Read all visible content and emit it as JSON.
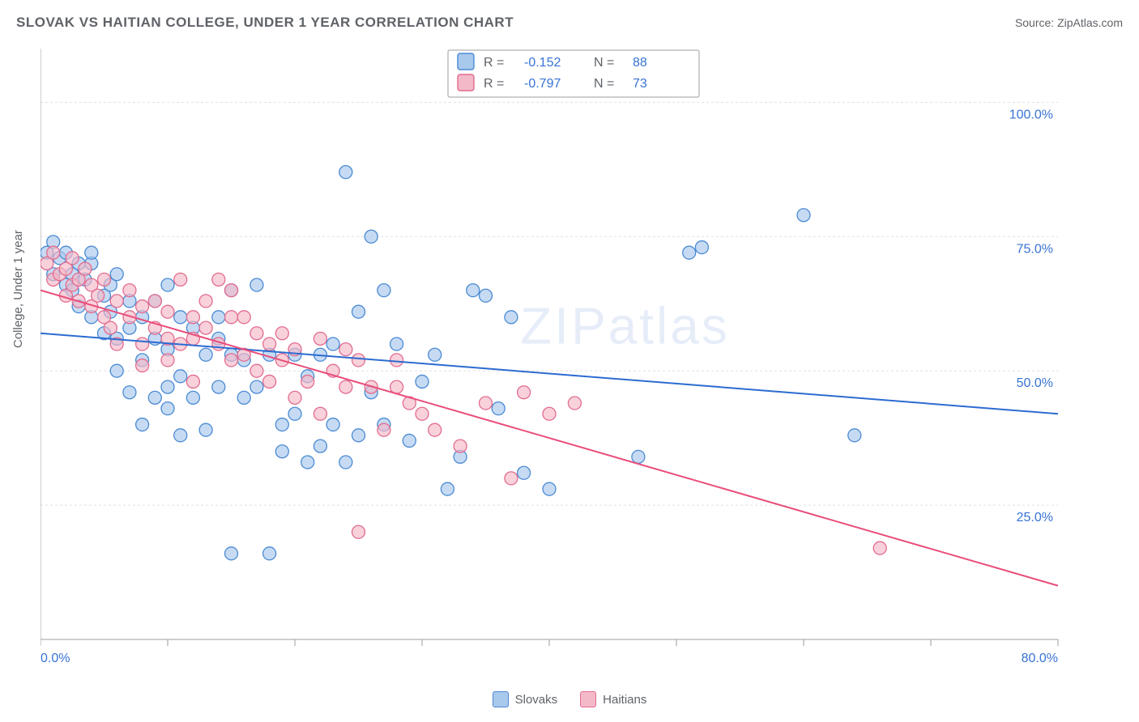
{
  "title": "SLOVAK VS HAITIAN COLLEGE, UNDER 1 YEAR CORRELATION CHART",
  "source": "Source: ZipAtlas.com",
  "ylabel": "College, Under 1 year",
  "watermark": "ZIPatlas",
  "chart": {
    "type": "scatter",
    "background_color": "#ffffff",
    "grid_color": "#e0e0e0",
    "axis_color": "#9e9e9e",
    "tick_color": "#9e9e9e",
    "label_color": "#3873d4",
    "title_fontsize": 17,
    "label_fontsize": 15,
    "tick_fontsize": 16,
    "marker_radius": 8,
    "marker_stroke_width": 1.3,
    "line_width": 2,
    "xlim": [
      0,
      80
    ],
    "ylim": [
      0,
      110
    ],
    "x_ticks_major": [
      0,
      80
    ],
    "x_ticks_minor": [
      10,
      20,
      30,
      40,
      50,
      60,
      70
    ],
    "y_ticks_major": [
      25,
      50,
      75,
      100
    ],
    "y_minor_step": 0,
    "x_tick_labels": {
      "0": "0.0%",
      "80": "80.0%"
    },
    "y_tick_labels": {
      "25": "25.0%",
      "50": "50.0%",
      "75": "75.0%",
      "100": "100.0%"
    }
  },
  "series": [
    {
      "name": "Slovaks",
      "marker_fill": "#a8c8ec",
      "marker_stroke": "#4a8ad4",
      "marker_opacity": 0.65,
      "line_color": "#2c6bd1",
      "trend_start": {
        "x": 0,
        "y": 57
      },
      "trend_end": {
        "x": 80,
        "y": 42
      },
      "R": "-0.152",
      "N": "88",
      "points": [
        [
          0.5,
          72
        ],
        [
          1,
          68
        ],
        [
          1,
          74
        ],
        [
          1.5,
          71
        ],
        [
          2,
          66
        ],
        [
          2,
          72
        ],
        [
          2.5,
          65
        ],
        [
          2.5,
          68
        ],
        [
          3,
          62
        ],
        [
          3,
          70
        ],
        [
          3.5,
          67
        ],
        [
          4,
          70
        ],
        [
          4,
          60
        ],
        [
          4,
          72
        ],
        [
          5,
          64
        ],
        [
          5,
          57
        ],
        [
          5.5,
          66
        ],
        [
          5.5,
          61
        ],
        [
          6,
          56
        ],
        [
          6,
          68
        ],
        [
          6,
          50
        ],
        [
          7,
          58
        ],
        [
          7,
          63
        ],
        [
          7,
          46
        ],
        [
          8,
          60
        ],
        [
          8,
          52
        ],
        [
          8,
          40
        ],
        [
          9,
          63
        ],
        [
          9,
          45
        ],
        [
          9,
          56
        ],
        [
          10,
          66
        ],
        [
          10,
          54
        ],
        [
          10,
          43
        ],
        [
          10,
          47
        ],
        [
          11,
          38
        ],
        [
          11,
          60
        ],
        [
          11,
          49
        ],
        [
          12,
          45
        ],
        [
          12,
          58
        ],
        [
          13,
          53
        ],
        [
          13,
          39
        ],
        [
          14,
          60
        ],
        [
          14,
          56
        ],
        [
          14,
          47
        ],
        [
          15,
          65
        ],
        [
          15,
          53
        ],
        [
          15,
          16
        ],
        [
          16,
          45
        ],
        [
          16,
          52
        ],
        [
          17,
          66
        ],
        [
          17,
          47
        ],
        [
          18,
          16
        ],
        [
          18,
          53
        ],
        [
          19,
          40
        ],
        [
          19,
          35
        ],
        [
          20,
          42
        ],
        [
          20,
          53
        ],
        [
          21,
          33
        ],
        [
          21,
          49
        ],
        [
          22,
          36
        ],
        [
          22,
          53
        ],
        [
          23,
          55
        ],
        [
          23,
          40
        ],
        [
          24,
          87
        ],
        [
          24,
          33
        ],
        [
          25,
          61
        ],
        [
          25,
          38
        ],
        [
          26,
          75
        ],
        [
          26,
          46
        ],
        [
          27,
          65
        ],
        [
          27,
          40
        ],
        [
          28,
          55
        ],
        [
          29,
          37
        ],
        [
          30,
          48
        ],
        [
          31,
          53
        ],
        [
          32,
          28
        ],
        [
          33,
          34
        ],
        [
          34,
          65
        ],
        [
          35,
          64
        ],
        [
          36,
          43
        ],
        [
          37,
          60
        ],
        [
          38,
          31
        ],
        [
          40,
          28
        ],
        [
          47,
          34
        ],
        [
          51,
          72
        ],
        [
          52,
          73
        ],
        [
          60,
          79
        ],
        [
          64,
          38
        ]
      ]
    },
    {
      "name": "Haitians",
      "marker_fill": "#f4b9c8",
      "marker_stroke": "#e26c8f",
      "marker_opacity": 0.65,
      "line_color": "#e94d7a",
      "trend_start": {
        "x": 0,
        "y": 65
      },
      "trend_end": {
        "x": 80,
        "y": 10
      },
      "R": "-0.797",
      "N": "73",
      "points": [
        [
          0.5,
          70
        ],
        [
          1,
          67
        ],
        [
          1,
          72
        ],
        [
          1.5,
          68
        ],
        [
          2,
          64
        ],
        [
          2,
          69
        ],
        [
          2.5,
          66
        ],
        [
          2.5,
          71
        ],
        [
          3,
          63
        ],
        [
          3,
          67
        ],
        [
          3.5,
          69
        ],
        [
          4,
          62
        ],
        [
          4,
          66
        ],
        [
          4.5,
          64
        ],
        [
          5,
          60
        ],
        [
          5,
          67
        ],
        [
          5.5,
          58
        ],
        [
          6,
          63
        ],
        [
          6,
          55
        ],
        [
          7,
          60
        ],
        [
          7,
          65
        ],
        [
          8,
          55
        ],
        [
          8,
          62
        ],
        [
          8,
          51
        ],
        [
          9,
          58
        ],
        [
          9,
          63
        ],
        [
          10,
          52
        ],
        [
          10,
          61
        ],
        [
          10,
          56
        ],
        [
          11,
          67
        ],
        [
          11,
          55
        ],
        [
          12,
          60
        ],
        [
          12,
          56
        ],
        [
          12,
          48
        ],
        [
          13,
          58
        ],
        [
          13,
          63
        ],
        [
          14,
          55
        ],
        [
          14,
          67
        ],
        [
          15,
          60
        ],
        [
          15,
          52
        ],
        [
          15,
          65
        ],
        [
          16,
          53
        ],
        [
          16,
          60
        ],
        [
          17,
          57
        ],
        [
          17,
          50
        ],
        [
          18,
          55
        ],
        [
          18,
          48
        ],
        [
          19,
          52
        ],
        [
          19,
          57
        ],
        [
          20,
          45
        ],
        [
          20,
          54
        ],
        [
          21,
          48
        ],
        [
          22,
          42
        ],
        [
          22,
          56
        ],
        [
          23,
          50
        ],
        [
          24,
          47
        ],
        [
          24,
          54
        ],
        [
          25,
          52
        ],
        [
          25,
          20
        ],
        [
          26,
          47
        ],
        [
          27,
          39
        ],
        [
          28,
          47
        ],
        [
          28,
          52
        ],
        [
          29,
          44
        ],
        [
          30,
          42
        ],
        [
          31,
          39
        ],
        [
          33,
          36
        ],
        [
          35,
          44
        ],
        [
          37,
          30
        ],
        [
          38,
          46
        ],
        [
          40,
          42
        ],
        [
          42,
          44
        ],
        [
          66,
          17
        ]
      ]
    }
  ],
  "stats_box": {
    "labelR": "R  =",
    "labelN": "N  ="
  },
  "bottom_legend": [
    {
      "label": "Slovaks",
      "fill": "#a8c8ec",
      "stroke": "#4a8ad4"
    },
    {
      "label": "Haitians",
      "fill": "#f4b9c8",
      "stroke": "#e26c8f"
    }
  ]
}
